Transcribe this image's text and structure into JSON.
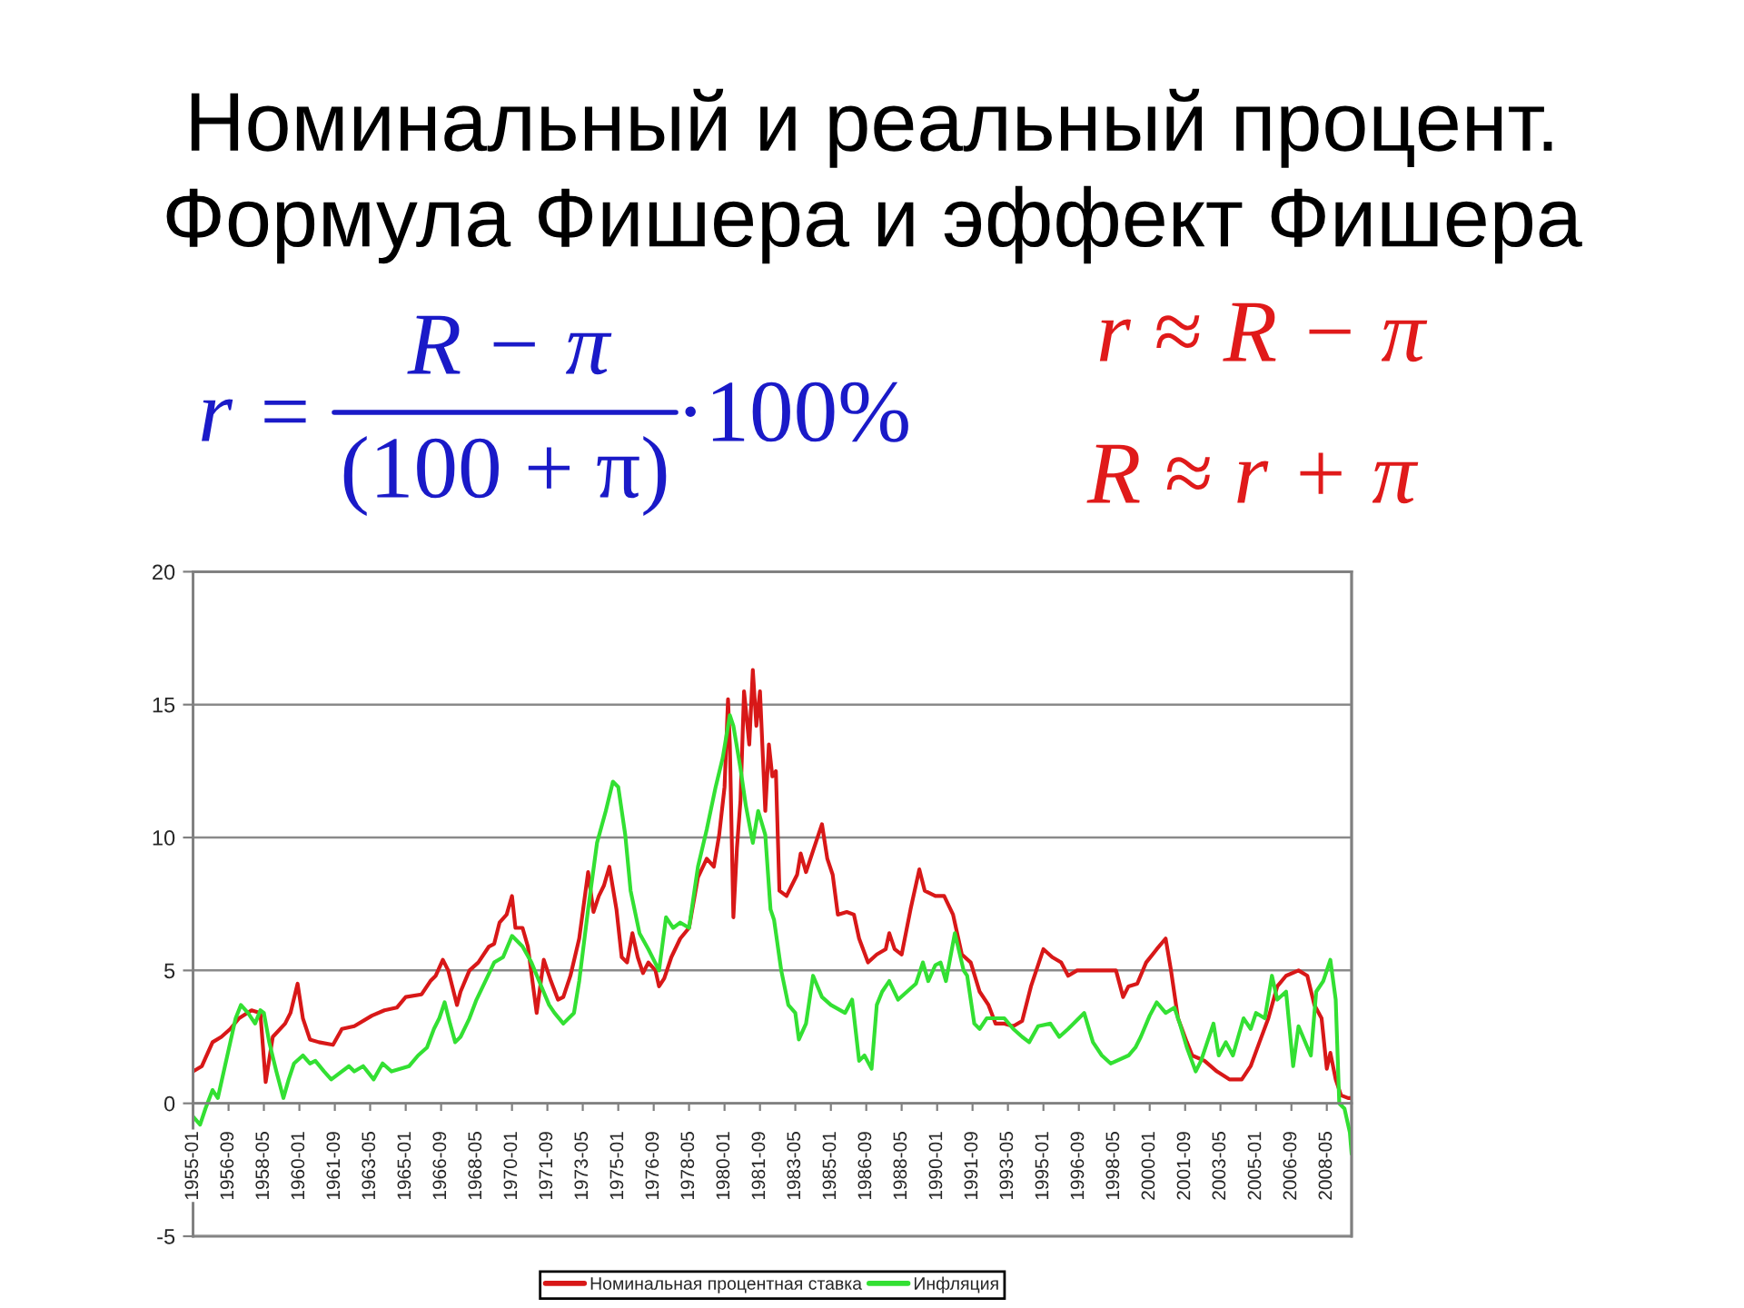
{
  "chart_data": {
    "type": "line",
    "title": "Номинальный и реальный процент.\nФормула Фишера и эффект Фишера",
    "annotations": [
      "r =",
      "R − π",
      "(100 + π)",
      "·100%",
      "r ≈ R − π",
      "R ≈ r + π"
    ],
    "series": [
      {
        "name": "Номинальная процентная ставка",
        "color": "#d81818",
        "x": [
          "1955-01",
          "1955-06",
          "1955-12",
          "1956-05",
          "1956-10",
          "1957-03",
          "1957-10",
          "1958-03",
          "1958-06",
          "1958-10",
          "1959-05",
          "1959-08",
          "1959-12",
          "1960-03",
          "1960-07",
          "1960-12",
          "1961-08",
          "1962-01",
          "1962-08",
          "1963-06",
          "1964-01",
          "1964-08",
          "1965-01",
          "1965-10",
          "1966-03",
          "1966-06",
          "1966-10",
          "1967-01",
          "1967-06",
          "1967-08",
          "1968-01",
          "1968-06",
          "1968-12",
          "1969-03",
          "1969-06",
          "1969-10",
          "1970-01",
          "1970-03",
          "1970-07",
          "1970-10",
          "1971-03",
          "1971-07",
          "1971-11",
          "1972-03",
          "1972-06",
          "1972-10",
          "1973-03",
          "1973-08",
          "1973-11",
          "1974-02",
          "1974-05",
          "1974-08",
          "1974-12",
          "1975-03",
          "1975-06",
          "1975-09",
          "1975-12",
          "1976-03",
          "1976-06",
          "1976-10",
          "1976-12",
          "1977-03",
          "1977-07",
          "1977-12",
          "1978-05",
          "1978-10",
          "1979-03",
          "1979-07",
          "1979-10",
          "1980-01",
          "1980-03",
          "1980-04",
          "1980-06",
          "1980-08",
          "1980-10",
          "1980-12",
          "1981-03",
          "1981-05",
          "1981-07",
          "1981-09",
          "1981-12",
          "1982-02",
          "1982-04",
          "1982-06",
          "1982-08",
          "1982-12",
          "1983-03",
          "1983-06",
          "1983-08",
          "1983-11",
          "1984-03",
          "1984-08",
          "1984-11",
          "1985-02",
          "1985-05",
          "1985-10",
          "1986-02",
          "1986-05",
          "1986-10",
          "1987-03",
          "1987-08",
          "1987-10",
          "1988-01",
          "1988-05",
          "1988-10",
          "1989-03",
          "1989-06",
          "1989-12",
          "1990-05",
          "1990-10",
          "1991-03",
          "1991-08",
          "1992-01",
          "1992-06",
          "1992-10",
          "1993-03",
          "1993-08",
          "1994-01",
          "1994-06",
          "1995-01",
          "1995-06",
          "1995-11",
          "1996-03",
          "1996-08",
          "1997-01",
          "1997-10",
          "1998-06",
          "1998-10",
          "1999-01",
          "1999-06",
          "1999-11",
          "2000-05",
          "2000-10",
          "2001-01",
          "2001-05",
          "2001-10",
          "2002-01",
          "2002-08",
          "2003-03",
          "2003-10",
          "2004-05",
          "2004-10",
          "2005-03",
          "2005-08",
          "2006-01",
          "2006-06",
          "2007-01",
          "2007-06",
          "2007-10",
          "2008-02",
          "2008-05",
          "2008-07",
          "2008-10",
          "2009-01",
          "2009-05",
          "2009-07"
        ],
        "values": [
          1.2,
          1.4,
          2.3,
          2.5,
          2.8,
          3.2,
          3.5,
          3.4,
          0.8,
          2.5,
          3.0,
          3.4,
          4.5,
          3.2,
          2.4,
          2.3,
          2.2,
          2.8,
          2.9,
          3.3,
          3.5,
          3.6,
          4.0,
          4.1,
          4.6,
          4.8,
          5.4,
          5.0,
          3.7,
          4.2,
          5.0,
          5.3,
          5.9,
          6.0,
          6.8,
          7.1,
          7.8,
          6.6,
          6.6,
          5.9,
          3.4,
          5.4,
          4.6,
          3.9,
          4.0,
          4.8,
          6.2,
          8.7,
          7.2,
          7.8,
          8.2,
          8.9,
          7.3,
          5.5,
          5.3,
          6.4,
          5.5,
          4.9,
          5.3,
          5.0,
          4.4,
          4.7,
          5.5,
          6.2,
          6.6,
          8.5,
          9.2,
          8.9,
          10.1,
          11.9,
          15.2,
          13.5,
          7.0,
          9.6,
          11.4,
          15.5,
          13.5,
          16.3,
          14.2,
          15.5,
          11.0,
          13.5,
          12.3,
          12.5,
          8.0,
          7.8,
          8.2,
          8.6,
          9.4,
          8.7,
          9.5,
          10.5,
          9.2,
          8.6,
          7.1,
          7.2,
          7.1,
          6.2,
          5.3,
          5.6,
          5.8,
          6.4,
          5.8,
          5.6,
          7.3,
          8.8,
          8.0,
          7.8,
          7.8,
          7.1,
          5.6,
          5.3,
          4.2,
          3.7,
          3.0,
          3.0,
          2.9,
          3.1,
          4.4,
          5.8,
          5.5,
          5.3,
          4.8,
          5.0,
          5.0,
          5.0,
          5.0,
          4.0,
          4.4,
          4.5,
          5.3,
          5.8,
          6.2,
          5.0,
          3.2,
          2.3,
          1.8,
          1.6,
          1.2,
          0.9,
          0.9,
          1.4,
          2.3,
          3.2,
          4.4,
          4.8,
          5.0,
          4.8,
          3.7,
          3.2,
          1.3,
          1.9,
          0.9,
          0.3,
          0.2,
          0.2
        ]
      },
      {
        "name": "Инфляция",
        "color": "#33e033",
        "x": [
          "1955-01",
          "1955-05",
          "1955-08",
          "1955-12",
          "1956-03",
          "1956-07",
          "1956-10",
          "1957-01",
          "1957-04",
          "1957-08",
          "1957-12",
          "1958-03",
          "1958-05",
          "1958-08",
          "1958-12",
          "1959-04",
          "1959-07",
          "1959-10",
          "1960-03",
          "1960-07",
          "1960-10",
          "1961-03",
          "1961-07",
          "1962-05",
          "1962-08",
          "1963-01",
          "1963-07",
          "1963-12",
          "1964-05",
          "1965-03",
          "1965-08",
          "1966-01",
          "1966-05",
          "1966-08",
          "1966-11",
          "1967-02",
          "1967-05",
          "1967-08",
          "1968-01",
          "1968-05",
          "1968-10",
          "1969-03",
          "1969-08",
          "1970-01",
          "1970-07",
          "1970-12",
          "1971-05",
          "1971-10",
          "1972-01",
          "1972-06",
          "1972-12",
          "1973-03",
          "1973-08",
          "1974-01",
          "1974-06",
          "1974-10",
          "1975-01",
          "1975-05",
          "1975-08",
          "1976-01",
          "1976-06",
          "1976-12",
          "1977-04",
          "1977-08",
          "1977-12",
          "1978-05",
          "1978-10",
          "1979-03",
          "1979-08",
          "1979-12",
          "1980-04",
          "1980-06",
          "1980-10",
          "1981-01",
          "1981-05",
          "1981-08",
          "1981-12",
          "1982-03",
          "1982-05",
          "1982-09",
          "1983-01",
          "1983-05",
          "1983-07",
          "1983-11",
          "1984-03",
          "1984-08",
          "1985-01",
          "1985-09",
          "1986-01",
          "1986-05",
          "1986-08",
          "1986-12",
          "1987-03",
          "1987-06",
          "1987-10",
          "1988-03",
          "1988-08",
          "1989-01",
          "1989-05",
          "1989-08",
          "1989-12",
          "1990-03",
          "1990-06",
          "1990-11",
          "1991-04",
          "1991-06",
          "1991-10",
          "1992-01",
          "1992-05",
          "1993-03",
          "1993-08",
          "1994-01",
          "1994-05",
          "1994-10",
          "1995-05",
          "1995-10",
          "1996-03",
          "1996-12",
          "1997-05",
          "1997-10",
          "1998-03",
          "1999-01",
          "1999-05",
          "1999-08",
          "2000-01",
          "2000-05",
          "2000-10",
          "2001-03",
          "2001-06",
          "2001-10",
          "2002-03",
          "2002-06",
          "2003-01",
          "2003-04",
          "2003-08",
          "2003-12",
          "2004-03",
          "2004-06",
          "2004-10",
          "2005-01",
          "2005-06",
          "2005-10",
          "2006-01",
          "2006-06",
          "2006-10",
          "2007-01",
          "2007-08",
          "2007-11",
          "2008-03",
          "2008-07",
          "2008-10",
          "2008-12",
          "2009-03",
          "2009-06",
          "2009-07"
        ],
        "values": [
          -0.5,
          -0.8,
          -0.2,
          0.5,
          0.2,
          1.4,
          2.3,
          3.2,
          3.7,
          3.4,
          3.0,
          3.5,
          3.4,
          2.3,
          1.2,
          0.2,
          0.9,
          1.5,
          1.8,
          1.5,
          1.6,
          1.2,
          0.9,
          1.4,
          1.2,
          1.4,
          0.9,
          1.5,
          1.2,
          1.4,
          1.8,
          2.1,
          2.8,
          3.2,
          3.8,
          3.0,
          2.3,
          2.5,
          3.2,
          3.9,
          4.6,
          5.3,
          5.5,
          6.3,
          5.9,
          5.3,
          4.5,
          3.7,
          3.4,
          3.0,
          3.4,
          4.6,
          7.3,
          9.8,
          11.0,
          12.1,
          11.9,
          10.1,
          8.0,
          6.4,
          5.8,
          5.0,
          7.0,
          6.6,
          6.8,
          6.6,
          8.9,
          10.3,
          11.9,
          13.0,
          14.6,
          14.2,
          12.6,
          11.2,
          9.8,
          11.0,
          10.1,
          7.3,
          6.9,
          5.0,
          3.7,
          3.4,
          2.4,
          3.0,
          4.8,
          4.0,
          3.7,
          3.4,
          3.9,
          1.6,
          1.8,
          1.3,
          3.7,
          4.2,
          4.6,
          3.9,
          4.2,
          4.5,
          5.3,
          4.6,
          5.2,
          5.3,
          4.6,
          6.4,
          5.0,
          4.8,
          3.0,
          2.8,
          3.2,
          3.2,
          2.8,
          2.5,
          2.3,
          2.9,
          3.0,
          2.5,
          2.8,
          3.4,
          2.3,
          1.8,
          1.5,
          1.8,
          2.1,
          2.5,
          3.3,
          3.8,
          3.4,
          3.6,
          3.0,
          2.1,
          1.2,
          1.6,
          3.0,
          1.8,
          2.3,
          1.8,
          2.5,
          3.2,
          2.8,
          3.4,
          3.2,
          4.8,
          3.9,
          4.2,
          1.4,
          2.9,
          1.8,
          4.2,
          4.6,
          5.4,
          3.9,
          0.0,
          -0.2,
          -1.1,
          -1.9
        ]
      }
    ],
    "xlim": [
      "1955-01",
      "2009-07"
    ],
    "xticks": [
      "1955-01",
      "1956-09",
      "1958-05",
      "1960-01",
      "1961-09",
      "1963-05",
      "1965-01",
      "1966-09",
      "1968-05",
      "1970-01",
      "1971-09",
      "1973-05",
      "1975-01",
      "1976-09",
      "1978-05",
      "1980-01",
      "1981-09",
      "1983-05",
      "1985-01",
      "1986-09",
      "1988-05",
      "1990-01",
      "1991-09",
      "1993-05",
      "1995-01",
      "1996-09",
      "1998-05",
      "2000-01",
      "2001-09",
      "2003-05",
      "2005-01",
      "2006-09",
      "2008-05"
    ],
    "ylim": [
      -5,
      20
    ],
    "yticks": [
      -5,
      0,
      5,
      10,
      15,
      20
    ],
    "grid": "y",
    "legend": "bottom"
  }
}
